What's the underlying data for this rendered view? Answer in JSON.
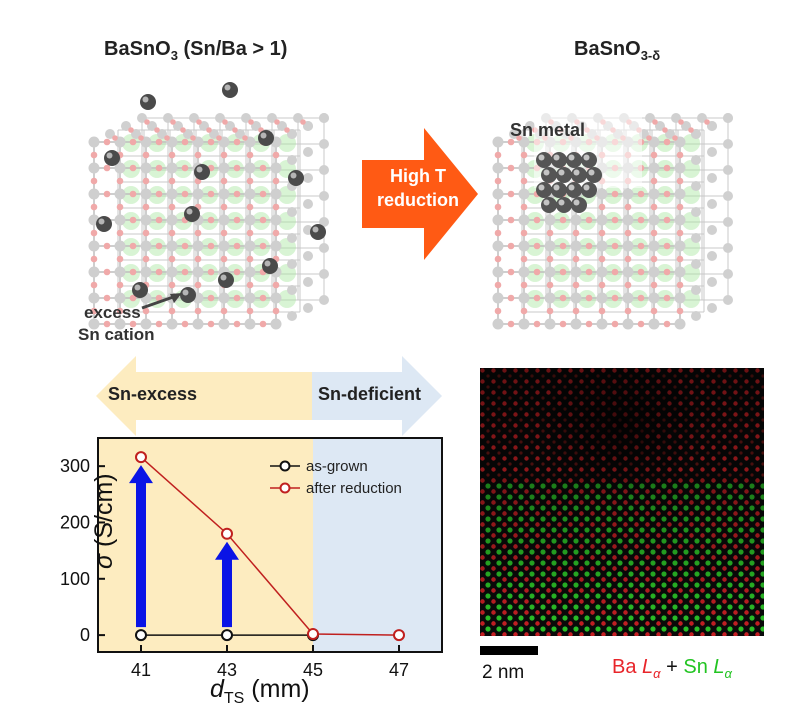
{
  "left_cell": {
    "title_main": "BaSnO",
    "title_sub": "3",
    "title_tail": " (Sn/Ba > 1)",
    "annotation_line1": "excess",
    "annotation_line2": "Sn cation"
  },
  "right_cell": {
    "title_main": "BaSnO",
    "title_sub": "3-δ",
    "cluster_label": "Sn metal"
  },
  "process_arrow": {
    "line1": "High T",
    "line2": "reduction",
    "color": "#ff5a14"
  },
  "regions": {
    "excess_label": "Sn-excess",
    "deficient_label": "Sn-deficient",
    "excess_color": "#fdecc0",
    "deficient_color": "#dde8f4"
  },
  "chart_data": {
    "type": "line",
    "xlabel_main": "d",
    "xlabel_sub": "TS",
    "xlabel_unit": " (mm)",
    "ylabel_symbol": "σ",
    "ylabel_unit": " (S/cm)",
    "x_ticks": [
      "41",
      "43",
      "45",
      "47"
    ],
    "y_ticks": [
      "0",
      "100",
      "200",
      "300"
    ],
    "xlim": [
      40,
      48
    ],
    "ylim": [
      -30,
      350
    ],
    "series": [
      {
        "name": "as-grown",
        "color": "#111111",
        "x": [
          41,
          43,
          45
        ],
        "y": [
          0,
          0,
          0
        ]
      },
      {
        "name": "after reduction",
        "color": "#c0201f",
        "x": [
          41,
          43,
          45,
          47
        ],
        "y": [
          316,
          180,
          2,
          0
        ]
      }
    ],
    "legend": "top-right",
    "arrows": [
      {
        "x": 41,
        "from": 0,
        "to": 316
      },
      {
        "x": 43,
        "from": 0,
        "to": 180
      }
    ],
    "arrow_color": "#0a14e6"
  },
  "micrograph": {
    "scale_label": "2 nm",
    "element1": "Ba",
    "element2": "Sn",
    "line_symbol": "L",
    "line_sub": "α",
    "plus": "+",
    "color1": "#e8252a",
    "color2": "#22c422"
  }
}
